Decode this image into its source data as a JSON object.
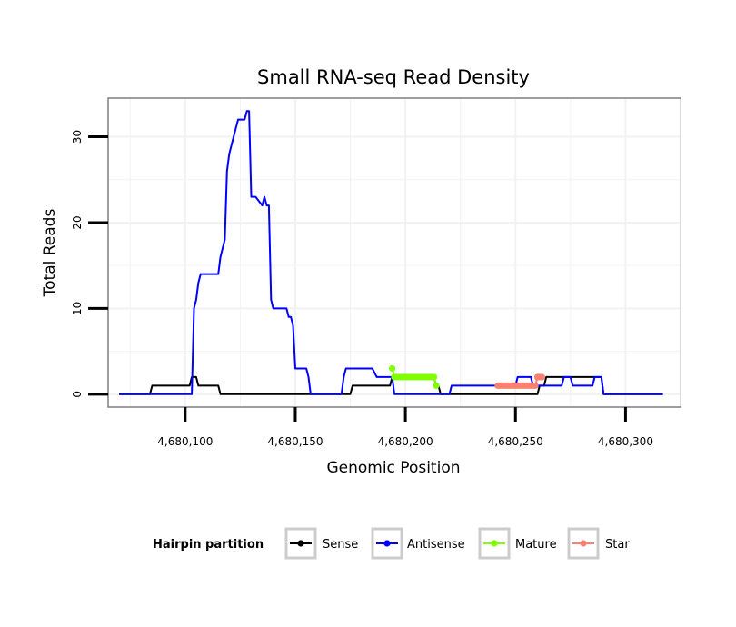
{
  "chart_data": {
    "type": "line",
    "title": "Small RNA-seq Read Density",
    "xlabel": "Genomic Position",
    "ylabel": "Total Reads",
    "xlim": [
      4680065,
      4680325
    ],
    "ylim": [
      -1.5,
      34.5
    ],
    "x_ticks": [
      4680100,
      4680150,
      4680200,
      4680250,
      4680300
    ],
    "x_tick_labels": [
      "4,680,100",
      "4,680,150",
      "4,680,200",
      "4,680,250",
      "4,680,300"
    ],
    "y_ticks": [
      0,
      10,
      20,
      30
    ],
    "y_tick_labels": [
      "0",
      "10",
      "20",
      "30"
    ],
    "grid": true,
    "legend": {
      "title": "Hairpin partition",
      "position": "bottom",
      "entries": [
        {
          "name": "Sense",
          "color": "#000000"
        },
        {
          "name": "Antisense",
          "color": "#0000ff"
        },
        {
          "name": "Mature",
          "color": "#7fff00"
        },
        {
          "name": "Star",
          "color": "#fa8072"
        }
      ]
    },
    "series": [
      {
        "name": "Sense",
        "color": "#000000",
        "style": "line",
        "x": [
          4680070,
          4680084,
          4680085,
          4680102,
          4680103,
          4680105,
          4680106,
          4680115,
          4680116,
          4680175,
          4680176,
          4680193,
          4680194,
          4680213,
          4680214,
          4680215,
          4680216,
          4680260,
          4680261,
          4680263,
          4680264,
          4680289,
          4680290,
          4680317
        ],
        "y": [
          0,
          0,
          1,
          1,
          2,
          2,
          1,
          1,
          0,
          0,
          1,
          1,
          2,
          2,
          1,
          1,
          0,
          0,
          1,
          1,
          2,
          2,
          0,
          0
        ]
      },
      {
        "name": "Antisense",
        "color": "#0000ff",
        "style": "line",
        "x": [
          4680070,
          4680103,
          4680104,
          4680105,
          4680106,
          4680107,
          4680115,
          4680116,
          4680117,
          4680118,
          4680119,
          4680120,
          4680121,
          4680122,
          4680124,
          4680125,
          4680127,
          4680128,
          4680129,
          4680130,
          4680131,
          4680132,
          4680135,
          4680136,
          4680137,
          4680138,
          4680139,
          4680140,
          4680141,
          4680146,
          4680147,
          4680148,
          4680149,
          4680150,
          4680155,
          4680156,
          4680157,
          4680158,
          4680171,
          4680172,
          4680173,
          4680174,
          4680184,
          4680185,
          4680187,
          4680188,
          4680194,
          4680195,
          4680220,
          4680221,
          4680250,
          4680251,
          4680257,
          4680258,
          4680271,
          4680272,
          4680275,
          4680276,
          4680285,
          4680286,
          4680289,
          4680290,
          4680317
        ],
        "y": [
          0,
          0,
          10,
          11,
          13,
          14,
          14,
          16,
          17,
          18,
          26,
          28,
          29,
          30,
          32,
          32,
          32,
          33,
          33,
          23,
          23,
          23,
          22,
          23,
          22,
          22,
          11,
          10,
          10,
          10,
          9,
          9,
          8,
          3,
          3,
          2,
          0,
          0,
          0,
          2,
          3,
          3,
          3,
          3,
          2,
          2,
          2,
          0,
          0,
          1,
          1,
          2,
          2,
          1,
          1,
          2,
          2,
          1,
          1,
          2,
          2,
          0,
          0
        ]
      },
      {
        "name": "Mature",
        "color": "#7fff00",
        "style": "line-points",
        "x": [
          4680194,
          4680195,
          4680196,
          4680197,
          4680198,
          4680199,
          4680200,
          4680201,
          4680202,
          4680203,
          4680204,
          4680205,
          4680206,
          4680207,
          4680208,
          4680209,
          4680210,
          4680211,
          4680212,
          4680213,
          4680214
        ],
        "y": [
          3,
          2,
          2,
          2,
          2,
          2,
          2,
          2,
          2,
          2,
          2,
          2,
          2,
          2,
          2,
          2,
          2,
          2,
          2,
          2,
          1
        ]
      },
      {
        "name": "Star",
        "color": "#fa8072",
        "style": "line-points",
        "x": [
          4680242,
          4680243,
          4680244,
          4680245,
          4680246,
          4680247,
          4680248,
          4680249,
          4680250,
          4680251,
          4680252,
          4680253,
          4680254,
          4680255,
          4680256,
          4680257,
          4680258,
          4680259,
          4680260,
          4680261,
          4680262
        ],
        "y": [
          1,
          1,
          1,
          1,
          1,
          1,
          1,
          1,
          1,
          1,
          1,
          1,
          1,
          1,
          1,
          1,
          1,
          1,
          2,
          2,
          2
        ]
      }
    ]
  }
}
